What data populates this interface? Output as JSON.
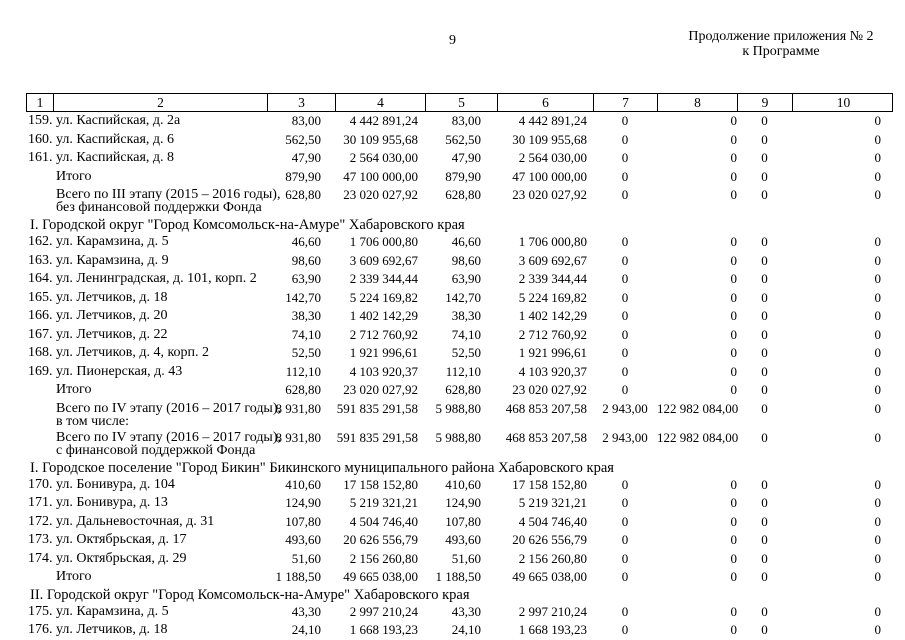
{
  "page": {
    "number": "9",
    "continuation": [
      "Продолжение приложения № 2",
      "к Программе"
    ]
  },
  "table": {
    "header": [
      "1",
      "2",
      "3",
      "4",
      "5",
      "6",
      "7",
      "8",
      "9",
      "10"
    ],
    "rows": [
      {
        "type": "item",
        "num": "159.",
        "label": "ул. Каспийская, д. 2а",
        "c3": "83,00",
        "c4": "4 442 891,24",
        "c5": "83,00",
        "c6": "4 442 891,24",
        "c7": "0",
        "c8": "0",
        "c9": "0",
        "c10": "0"
      },
      {
        "type": "item",
        "num": "160.",
        "label": "ул. Каспийская, д. 6",
        "c3": "562,50",
        "c4": "30 109 955,68",
        "c5": "562,50",
        "c6": "30 109 955,68",
        "c7": "0",
        "c8": "0",
        "c9": "0",
        "c10": "0"
      },
      {
        "type": "item",
        "num": "161.",
        "label": "ул. Каспийская, д. 8",
        "c3": "47,90",
        "c4": "2 564 030,00",
        "c5": "47,90",
        "c6": "2 564 030,00",
        "c7": "0",
        "c8": "0",
        "c9": "0",
        "c10": "0"
      },
      {
        "type": "total",
        "label": "Итого",
        "c3": "879,90",
        "c4": "47 100 000,00",
        "c5": "879,90",
        "c6": "47 100 000,00",
        "c7": "0",
        "c8": "0",
        "c9": "0",
        "c10": "0"
      },
      {
        "type": "stage",
        "line1": "Всего по III этапу (2015 – 2016 годы),",
        "line2": "без финансовой поддержки Фонда",
        "c3": "628,80",
        "c4": "23 020 027,92",
        "c5": "628,80",
        "c6": "23 020 027,92",
        "c7": "0",
        "c8": "0",
        "c9": "0",
        "c10": "0"
      },
      {
        "type": "section",
        "label": "I. Городской округ \"Город Комсомольск-на-Амуре\" Хабаровского края"
      },
      {
        "type": "item",
        "num": "162.",
        "label": "ул. Карамзина, д. 5",
        "c3": "46,60",
        "c4": "1 706 000,80",
        "c5": "46,60",
        "c6": "1 706 000,80",
        "c7": "0",
        "c8": "0",
        "c9": "0",
        "c10": "0"
      },
      {
        "type": "item",
        "num": "163.",
        "label": "ул. Карамзина, д. 9",
        "c3": "98,60",
        "c4": "3 609 692,67",
        "c5": "98,60",
        "c6": "3 609 692,67",
        "c7": "0",
        "c8": "0",
        "c9": "0",
        "c10": "0"
      },
      {
        "type": "item",
        "num": "164.",
        "label": "ул. Ленинградская, д. 101, корп. 2",
        "c3": "63,90",
        "c4": "2 339 344,44",
        "c5": "63,90",
        "c6": "2 339 344,44",
        "c7": "0",
        "c8": "0",
        "c9": "0",
        "c10": "0"
      },
      {
        "type": "item",
        "num": "165.",
        "label": "ул. Летчиков, д. 18",
        "c3": "142,70",
        "c4": "5 224 169,82",
        "c5": "142,70",
        "c6": "5 224 169,82",
        "c7": "0",
        "c8": "0",
        "c9": "0",
        "c10": "0"
      },
      {
        "type": "item",
        "num": "166.",
        "label": "ул. Летчиков, д. 20",
        "c3": "38,30",
        "c4": "1 402 142,29",
        "c5": "38,30",
        "c6": "1 402 142,29",
        "c7": "0",
        "c8": "0",
        "c9": "0",
        "c10": "0"
      },
      {
        "type": "item",
        "num": "167.",
        "label": "ул. Летчиков, д. 22",
        "c3": "74,10",
        "c4": "2 712 760,92",
        "c5": "74,10",
        "c6": "2 712 760,92",
        "c7": "0",
        "c8": "0",
        "c9": "0",
        "c10": "0"
      },
      {
        "type": "item",
        "num": "168.",
        "label": "ул. Летчиков, д. 4, корп. 2",
        "c3": "52,50",
        "c4": "1 921 996,61",
        "c5": "52,50",
        "c6": "1 921 996,61",
        "c7": "0",
        "c8": "0",
        "c9": "0",
        "c10": "0"
      },
      {
        "type": "item",
        "num": "169.",
        "label": "ул. Пионерская, д. 43",
        "c3": "112,10",
        "c4": "4 103 920,37",
        "c5": "112,10",
        "c6": "4 103 920,37",
        "c7": "0",
        "c8": "0",
        "c9": "0",
        "c10": "0"
      },
      {
        "type": "total",
        "label": "Итого",
        "c3": "628,80",
        "c4": "23 020 027,92",
        "c5": "628,80",
        "c6": "23 020 027,92",
        "c7": "0",
        "c8": "0",
        "c9": "0",
        "c10": "0"
      },
      {
        "type": "stage",
        "line1": "Всего по IV этапу (2016 – 2017 годы),",
        "line2": "в том числе:",
        "c3": "8 931,80",
        "c4": "591 835 291,58",
        "c5": "5 988,80",
        "c6": "468 853 207,58",
        "c7": "2 943,00",
        "c8": "122 982 084,00",
        "c9": "0",
        "c10": "0"
      },
      {
        "type": "stage",
        "line1": "Всего по IV этапу (2016 – 2017 годы),",
        "line2": "с финансовой поддержкой Фонда",
        "c3": "8 931,80",
        "c4": "591 835 291,58",
        "c5": "5 988,80",
        "c6": "468 853 207,58",
        "c7": "2 943,00",
        "c8": "122 982 084,00",
        "c9": "0",
        "c10": "0"
      },
      {
        "type": "section",
        "label": "I. Городское поселение \"Город Бикин\" Бикинского муниципального района Хабаровского края"
      },
      {
        "type": "item",
        "num": "170.",
        "label": "ул. Бонивура, д. 104",
        "c3": "410,60",
        "c4": "17 158 152,80",
        "c5": "410,60",
        "c6": "17 158 152,80",
        "c7": "0",
        "c8": "0",
        "c9": "0",
        "c10": "0"
      },
      {
        "type": "item",
        "num": "171.",
        "label": "ул. Бонивура, д. 13",
        "c3": "124,90",
        "c4": "5 219 321,21",
        "c5": "124,90",
        "c6": "5 219 321,21",
        "c7": "0",
        "c8": "0",
        "c9": "0",
        "c10": "0"
      },
      {
        "type": "item",
        "num": "172.",
        "label": "ул. Дальневосточная, д. 31",
        "c3": "107,80",
        "c4": "4 504 746,40",
        "c5": "107,80",
        "c6": "4 504 746,40",
        "c7": "0",
        "c8": "0",
        "c9": "0",
        "c10": "0"
      },
      {
        "type": "item",
        "num": "173.",
        "label": "ул. Октябрьская, д. 17",
        "c3": "493,60",
        "c4": "20 626 556,79",
        "c5": "493,60",
        "c6": "20 626 556,79",
        "c7": "0",
        "c8": "0",
        "c9": "0",
        "c10": "0"
      },
      {
        "type": "item",
        "num": "174.",
        "label": "ул. Октябрьская, д. 29",
        "c3": "51,60",
        "c4": "2 156 260,80",
        "c5": "51,60",
        "c6": "2 156 260,80",
        "c7": "0",
        "c8": "0",
        "c9": "0",
        "c10": "0"
      },
      {
        "type": "total",
        "label": "Итого",
        "c3": "1 188,50",
        "c4": "49 665 038,00",
        "c5": "1 188,50",
        "c6": "49 665 038,00",
        "c7": "0",
        "c8": "0",
        "c9": "0",
        "c10": "0"
      },
      {
        "type": "section",
        "label": "II. Городской округ \"Город Комсомольск-на-Амуре\" Хабаровского края"
      },
      {
        "type": "item",
        "num": "175.",
        "label": "ул. Карамзина, д. 5",
        "c3": "43,30",
        "c4": "2 997 210,24",
        "c5": "43,30",
        "c6": "2 997 210,24",
        "c7": "0",
        "c8": "0",
        "c9": "0",
        "c10": "0"
      },
      {
        "type": "item",
        "num": "176.",
        "label": "ул. Летчиков, д. 18",
        "c3": "24,10",
        "c4": "1 668 193,23",
        "c5": "24,10",
        "c6": "1 668 193,23",
        "c7": "0",
        "c8": "0",
        "c9": "0",
        "c10": "0"
      }
    ]
  }
}
